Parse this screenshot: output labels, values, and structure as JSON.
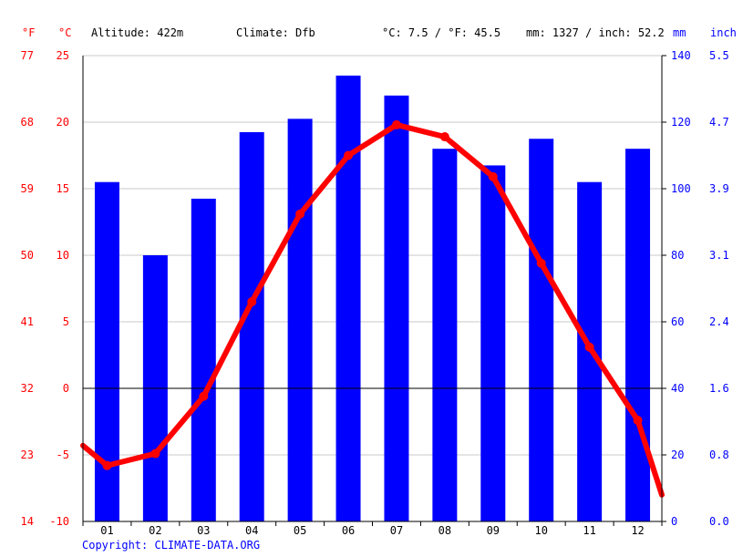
{
  "header": {
    "unit_f": "°F",
    "unit_c": "°C",
    "altitude": "Altitude: 422m",
    "climate": "Climate: Dfb",
    "avg_temp": "°C: 7.5 / °F: 45.5",
    "precip_total": "mm: 1327 / inch: 52.2",
    "unit_mm": "mm",
    "unit_inch": "inch"
  },
  "copyright": "Copyright: CLIMATE-DATA.ORG",
  "colors": {
    "temperature": "#ff0000",
    "precipitation": "#0000ff",
    "grid": "#c8c8c8",
    "zero_line": "#000000"
  },
  "chart_data": {
    "type": "bar+line",
    "categories": [
      "01",
      "02",
      "03",
      "04",
      "05",
      "06",
      "07",
      "08",
      "09",
      "10",
      "11",
      "12"
    ],
    "series": [
      {
        "type": "bar",
        "axis": "right",
        "unit": "mm",
        "values": [
          102,
          80,
          97,
          117,
          121,
          134,
          128,
          112,
          107,
          115,
          102,
          112
        ]
      },
      {
        "type": "line",
        "axis": "left",
        "unit": "°C",
        "values": [
          -5.8,
          -4.9,
          -0.6,
          6.5,
          13.1,
          17.5,
          19.8,
          18.9,
          15.9,
          9.4,
          3.1,
          -2.4
        ],
        "edge_start": -4.3,
        "edge_end": -8.0
      }
    ],
    "y_left_c": {
      "range": [
        -10,
        25
      ],
      "ticks": [
        "25",
        "20",
        "15",
        "10",
        "5",
        "0",
        "-5",
        "-10"
      ]
    },
    "y_left_f": {
      "ticks": [
        "77",
        "68",
        "59",
        "50",
        "41",
        "32",
        "23",
        "14"
      ]
    },
    "y_right_mm": {
      "range": [
        0,
        140
      ],
      "ticks": [
        "140",
        "120",
        "100",
        "80",
        "60",
        "40",
        "20",
        "0"
      ]
    },
    "y_right_inch": {
      "ticks": [
        "5.5",
        "4.7",
        "3.9",
        "3.1",
        "2.4",
        "1.6",
        "0.8",
        "0.0"
      ]
    },
    "grid": true
  }
}
